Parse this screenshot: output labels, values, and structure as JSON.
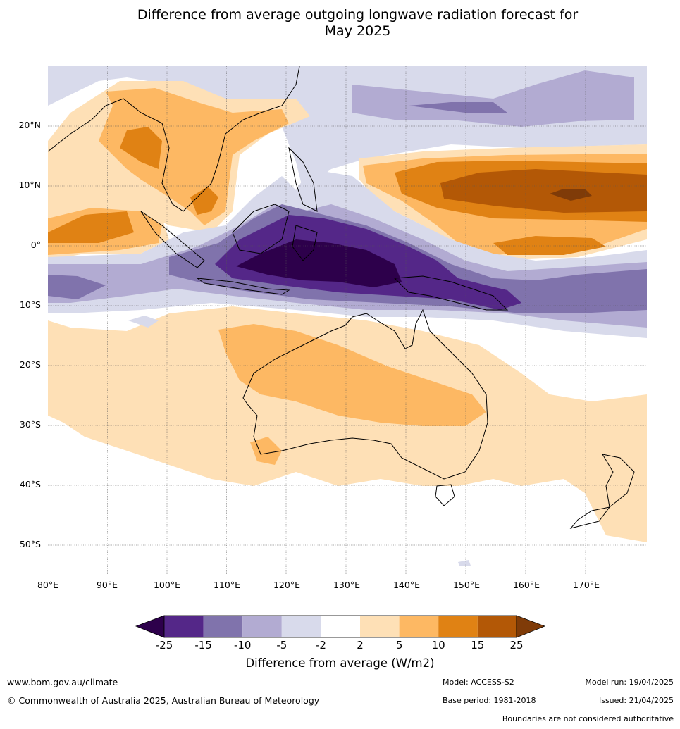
{
  "title": {
    "line1": "Difference from average outgoing longwave radiation forecast for",
    "line2": "May 2025"
  },
  "map": {
    "lat_labels": [
      "20°N",
      "10°N",
      "0°",
      "10°S",
      "20°S",
      "30°S",
      "40°S",
      "50°S"
    ],
    "lon_labels": [
      "80°E",
      "90°E",
      "100°E",
      "110°E",
      "120°E",
      "130°E",
      "140°E",
      "150°E",
      "160°E",
      "170°E"
    ]
  },
  "colorbar": {
    "ticks": [
      "-25",
      "-15",
      "-10",
      "-5",
      "-2",
      "2",
      "5",
      "10",
      "15",
      "25"
    ],
    "colors": [
      "#2d004b",
      "#542788",
      "#8073ac",
      "#b2abd2",
      "#d8daeb",
      "#ffffff",
      "#fee0b6",
      "#fdb863",
      "#e08214",
      "#b35806",
      "#7f3b08"
    ],
    "label": "Difference from average (W/m2)"
  },
  "footer": {
    "website": "www.bom.gov.au/climate",
    "copyright": "© Commonwealth of Australia 2025, Australian Bureau of Meteorology",
    "model": "Model: ACCESS-S2",
    "base_period": "Base period: 1981-2018",
    "model_run": "Model run: 19/04/2025",
    "issued": "Issued: 21/04/2025",
    "disclaimer": "Boundaries are not considered authoritative"
  }
}
